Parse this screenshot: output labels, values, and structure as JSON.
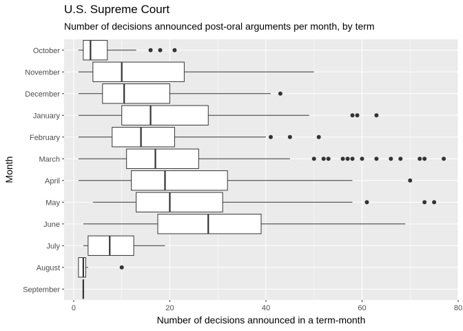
{
  "chart_data": {
    "type": "boxplot",
    "title": "U.S. Supreme Court",
    "subtitle": "Number of decisions announced post-oral arguments per month, by term",
    "xlabel": "Number of decisions announced in a term-month",
    "ylabel": "Month",
    "xlim": [
      -2,
      80
    ],
    "x_ticks": [
      0,
      20,
      40,
      60,
      80
    ],
    "grid": true,
    "colors": {
      "panel": "#ebebeb",
      "grid": "#ffffff",
      "box_fill": "#ffffff",
      "stroke": "#333333",
      "outlier": "#333333"
    },
    "categories": [
      "October",
      "November",
      "December",
      "January",
      "February",
      "March",
      "April",
      "May",
      "June",
      "July",
      "August",
      "September"
    ],
    "boxes": [
      {
        "month": "October",
        "whisker_low": 1,
        "q1": 2,
        "median": 3.5,
        "q3": 7,
        "whisker_high": 13,
        "outliers": [
          16,
          18,
          21
        ]
      },
      {
        "month": "November",
        "whisker_low": 1,
        "q1": 4,
        "median": 10,
        "q3": 23,
        "whisker_high": 50,
        "outliers": []
      },
      {
        "month": "December",
        "whisker_low": 1,
        "q1": 6,
        "median": 10.5,
        "q3": 20,
        "whisker_high": 41,
        "outliers": [
          43
        ]
      },
      {
        "month": "January",
        "whisker_low": 1,
        "q1": 10,
        "median": 16,
        "q3": 28,
        "whisker_high": 49,
        "outliers": [
          58,
          59,
          63
        ]
      },
      {
        "month": "February",
        "whisker_low": 1,
        "q1": 8,
        "median": 14,
        "q3": 21,
        "whisker_high": 40,
        "outliers": [
          41,
          45,
          51
        ]
      },
      {
        "month": "March",
        "whisker_low": 1,
        "q1": 11,
        "median": 17,
        "q3": 26,
        "whisker_high": 45,
        "outliers": [
          50,
          52,
          53,
          56,
          57,
          58,
          60,
          63,
          66,
          68,
          72,
          73,
          77
        ]
      },
      {
        "month": "April",
        "whisker_low": 1,
        "q1": 12,
        "median": 19,
        "q3": 32,
        "whisker_high": 58,
        "outliers": [
          70
        ]
      },
      {
        "month": "May",
        "whisker_low": 4,
        "q1": 13,
        "median": 20,
        "q3": 31,
        "whisker_high": 58,
        "outliers": [
          61,
          73,
          75
        ]
      },
      {
        "month": "June",
        "whisker_low": 2,
        "q1": 17.5,
        "median": 28,
        "q3": 39,
        "whisker_high": 69,
        "outliers": []
      },
      {
        "month": "July",
        "whisker_low": 2,
        "q1": 3,
        "median": 7.5,
        "q3": 12.5,
        "whisker_high": 19,
        "outliers": []
      },
      {
        "month": "August",
        "whisker_low": 1,
        "q1": 1,
        "median": 2,
        "q3": 2.5,
        "whisker_high": 3,
        "outliers": [
          10
        ]
      },
      {
        "month": "September",
        "whisker_low": 2,
        "q1": 2,
        "median": 2,
        "q3": 2,
        "whisker_high": 2,
        "outliers": []
      }
    ]
  }
}
